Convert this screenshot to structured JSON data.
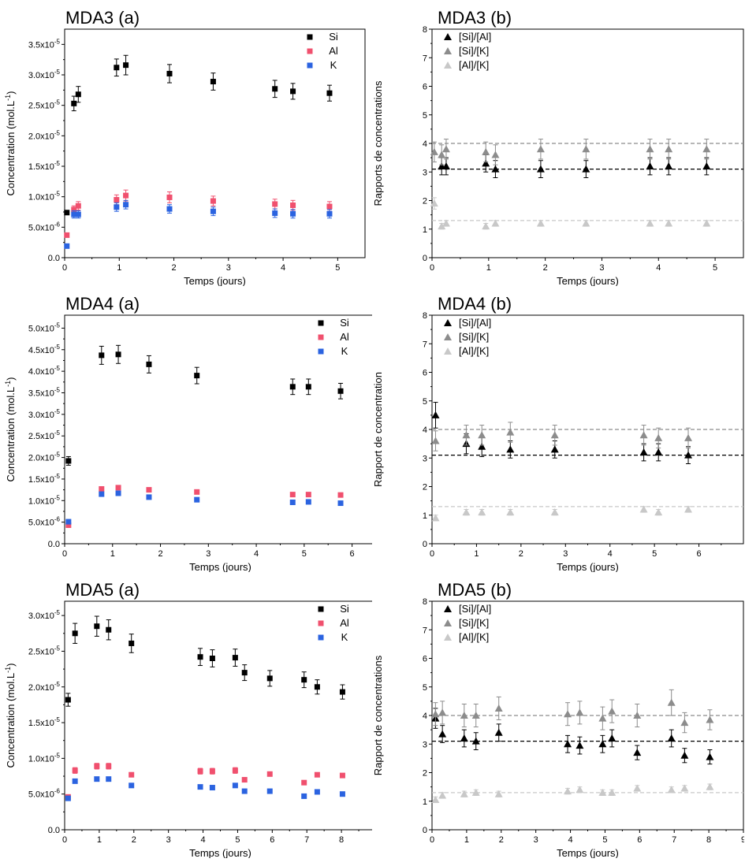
{
  "chart_data": [
    {
      "id": "mda3a",
      "type": "scatter",
      "title": "MDA3 (a)",
      "xlabel": "Temps (jours)",
      "ylabel": "Concentration (mol.L-1)",
      "xlim": [
        0,
        5.5
      ],
      "ylim": [
        0,
        3.75e-05
      ],
      "xticks": [
        0,
        1,
        2,
        3,
        4,
        5
      ],
      "yticks": [
        0,
        5e-06,
        1e-05,
        1.5e-05,
        2e-05,
        2.5e-05,
        3e-05,
        3.5e-05
      ],
      "yticklabels": [
        "0.0",
        "5.0x10-6",
        "1.0x10-5",
        "1.5x10-5",
        "2.0x10-5",
        "2.5x10-5",
        "3.0x10-5",
        "3.5x10-5"
      ],
      "grid": false,
      "legend": "top-right",
      "series": [
        {
          "name": "Si",
          "color": "#000000",
          "marker": "square",
          "x": [
            0.04,
            0.17,
            0.25,
            0.95,
            1.12,
            1.92,
            2.72,
            3.85,
            4.18,
            4.85
          ],
          "y": [
            7.4e-06,
            2.53e-05,
            2.68e-05,
            3.12e-05,
            3.16e-05,
            3.02e-05,
            2.89e-05,
            2.77e-05,
            2.73e-05,
            2.7e-05
          ],
          "err": [
            0,
            1.2e-06,
            1.3e-06,
            1.4e-06,
            1.6e-06,
            1.5e-06,
            1.4e-06,
            1.4e-06,
            1.3e-06,
            1.3e-06
          ]
        },
        {
          "name": "Al",
          "color": "#f0506e",
          "marker": "square",
          "x": [
            0.04,
            0.17,
            0.25,
            0.95,
            1.12,
            1.92,
            2.72,
            3.85,
            4.18,
            4.85
          ],
          "y": [
            3.7e-06,
            7.9e-06,
            8.5e-06,
            9.5e-06,
            1.02e-05,
            9.9e-06,
            9.3e-06,
            8.8e-06,
            8.6e-06,
            8.4e-06
          ],
          "err": [
            0,
            6e-07,
            7e-07,
            8e-07,
            9e-07,
            9e-07,
            8e-07,
            8e-07,
            8e-07,
            8e-07
          ]
        },
        {
          "name": "K",
          "color": "#2b63e0",
          "marker": "square",
          "x": [
            0.04,
            0.17,
            0.25,
            0.95,
            1.12,
            1.92,
            2.72,
            3.85,
            4.18,
            4.85
          ],
          "y": [
            1.9e-06,
            7.1e-06,
            7.1e-06,
            8.3e-06,
            8.7e-06,
            8e-06,
            7.6e-06,
            7.3e-06,
            7.2e-06,
            7.2e-06
          ],
          "err": [
            0,
            6e-07,
            6e-07,
            7e-07,
            7e-07,
            7e-07,
            7e-07,
            7e-07,
            7e-07,
            7e-07
          ]
        }
      ]
    },
    {
      "id": "mda3b",
      "type": "scatter",
      "title": "MDA3 (b)",
      "xlabel": "Temps (jours)",
      "ylabel": "Rapports de concentrations",
      "xlim": [
        0,
        5.5
      ],
      "ylim": [
        0,
        8
      ],
      "xticks": [
        0,
        1,
        2,
        3,
        4,
        5
      ],
      "yticks": [
        0,
        1,
        2,
        3,
        4,
        5,
        6,
        7,
        8
      ],
      "yticklabels": [
        "0",
        "1",
        "2",
        "3",
        "4",
        "5",
        "6",
        "7",
        "8"
      ],
      "grid": false,
      "legend": "top-left",
      "hlines": [
        {
          "y": 4.0,
          "color": "#8c8c8c"
        },
        {
          "y": 3.1,
          "color": "#000000"
        },
        {
          "y": 1.3,
          "color": "#c8c8c8"
        }
      ],
      "series": [
        {
          "name": "[Si]/[Al]",
          "color": "#000000",
          "marker": "triangle",
          "x": [
            0.17,
            0.25,
            0.95,
            1.12,
            1.92,
            2.72,
            3.85,
            4.18,
            4.85
          ],
          "y": [
            3.2,
            3.2,
            3.3,
            3.1,
            3.1,
            3.1,
            3.2,
            3.2,
            3.2
          ],
          "err": [
            0.3,
            0.3,
            0.3,
            0.3,
            0.3,
            0.3,
            0.3,
            0.3,
            0.3
          ]
        },
        {
          "name": "[Si]/[K]",
          "color": "#8c8c8c",
          "marker": "triangle",
          "x": [
            0.04,
            0.17,
            0.25,
            0.95,
            1.12,
            1.92,
            2.72,
            3.85,
            4.18,
            4.85
          ],
          "y": [
            3.7,
            3.6,
            3.8,
            3.7,
            3.6,
            3.8,
            3.8,
            3.8,
            3.8,
            3.8
          ],
          "err": [
            0.35,
            0.35,
            0.35,
            0.35,
            0.35,
            0.35,
            0.35,
            0.35,
            0.35,
            0.35
          ]
        },
        {
          "name": "[Al]/[K]",
          "color": "#c8c8c8",
          "marker": "triangle",
          "x": [
            0.04,
            0.17,
            0.25,
            0.95,
            1.12,
            1.92,
            2.72,
            3.85,
            4.18,
            4.85
          ],
          "y": [
            1.9,
            1.1,
            1.2,
            1.1,
            1.2,
            1.2,
            1.2,
            1.2,
            1.2,
            1.2
          ],
          "err": [
            0.2,
            0.1,
            0.1,
            0.1,
            0.1,
            0.1,
            0.1,
            0.1,
            0.1,
            0.1
          ]
        }
      ]
    },
    {
      "id": "mda4a",
      "type": "scatter",
      "title": "MDA4 (a)",
      "xlabel": "Temps (jours)",
      "ylabel": "Concentration (mol.L-1)",
      "xlim": [
        0,
        6.5
      ],
      "ylim": [
        0,
        5.3e-05
      ],
      "xticks": [
        0,
        1,
        2,
        3,
        4,
        5,
        6
      ],
      "yticks": [
        0,
        5e-06,
        1e-05,
        1.5e-05,
        2e-05,
        2.5e-05,
        3e-05,
        3.5e-05,
        4e-05,
        4.5e-05,
        5e-05
      ],
      "yticklabels": [
        "0.0",
        "5.0x10-6",
        "1.0x10-5",
        "1.5x10-5",
        "2.0x10-5",
        "2.5x10-5",
        "3.0x10-5",
        "3.5x10-5",
        "4.0x10-5",
        "4.5x10-5",
        "5.0x10-5"
      ],
      "grid": false,
      "legend": "top-right",
      "series": [
        {
          "name": "Si",
          "color": "#000000",
          "marker": "square",
          "x": [
            0.08,
            0.77,
            1.12,
            1.76,
            2.76,
            4.76,
            5.09,
            5.76
          ],
          "y": [
            1.92e-05,
            4.37e-05,
            4.39e-05,
            4.16e-05,
            3.9e-05,
            3.64e-05,
            3.64e-05,
            3.54e-05
          ],
          "err": [
            1e-06,
            2.1e-06,
            2.1e-06,
            2e-06,
            1.9e-06,
            1.8e-06,
            1.8e-06,
            1.8e-06
          ]
        },
        {
          "name": "Al",
          "color": "#f0506e",
          "marker": "square",
          "x": [
            0.08,
            0.77,
            1.12,
            1.76,
            2.76,
            4.76,
            5.09,
            5.76
          ],
          "y": [
            4.3e-06,
            1.27e-05,
            1.3e-05,
            1.25e-05,
            1.2e-05,
            1.14e-05,
            1.14e-05,
            1.13e-05
          ],
          "err": [
            0,
            0,
            0,
            0,
            0,
            0,
            0,
            0
          ]
        },
        {
          "name": "K",
          "color": "#2b63e0",
          "marker": "square",
          "x": [
            0.08,
            0.77,
            1.12,
            1.76,
            2.76,
            4.76,
            5.09,
            5.76
          ],
          "y": [
            5.1e-06,
            1.15e-05,
            1.17e-05,
            1.08e-05,
            1.02e-05,
            9.6e-06,
            9.7e-06,
            9.4e-06
          ],
          "err": [
            0,
            0,
            0,
            0,
            0,
            0,
            0,
            0
          ]
        }
      ]
    },
    {
      "id": "mda4b",
      "type": "scatter",
      "title": "MDA4 (b)",
      "xlabel": "Temps (jours)",
      "ylabel": "Rapport de concentration",
      "xlim": [
        0,
        7
      ],
      "ylim": [
        0,
        8
      ],
      "xticks": [
        0,
        1,
        2,
        3,
        4,
        5,
        6
      ],
      "yticks": [
        0,
        1,
        2,
        3,
        4,
        5,
        6,
        7,
        8
      ],
      "yticklabels": [
        "0",
        "1",
        "2",
        "3",
        "4",
        "5",
        "6",
        "7",
        "8"
      ],
      "grid": false,
      "legend": "top-left",
      "hlines": [
        {
          "y": 4.0,
          "color": "#8c8c8c"
        },
        {
          "y": 3.1,
          "color": "#000000"
        },
        {
          "y": 1.3,
          "color": "#c8c8c8"
        }
      ],
      "series": [
        {
          "name": "[Si]/[Al]",
          "color": "#000000",
          "marker": "triangle",
          "x": [
            0.08,
            0.77,
            1.12,
            1.76,
            2.76,
            4.76,
            5.09,
            5.76
          ],
          "y": [
            4.5,
            3.5,
            3.4,
            3.3,
            3.3,
            3.2,
            3.2,
            3.1
          ],
          "err": [
            0.45,
            0.35,
            0.35,
            0.3,
            0.3,
            0.3,
            0.3,
            0.3
          ]
        },
        {
          "name": "[Si]/[K]",
          "color": "#8c8c8c",
          "marker": "triangle",
          "x": [
            0.08,
            0.77,
            1.12,
            1.76,
            2.76,
            4.76,
            5.09,
            5.76
          ],
          "y": [
            3.6,
            3.8,
            3.8,
            3.9,
            3.8,
            3.8,
            3.7,
            3.7
          ],
          "err": [
            0.35,
            0.35,
            0.35,
            0.35,
            0.35,
            0.35,
            0.35,
            0.35
          ]
        },
        {
          "name": "[Al]/[K]",
          "color": "#c8c8c8",
          "marker": "triangle",
          "x": [
            0.08,
            0.77,
            1.12,
            1.76,
            2.76,
            4.76,
            5.09,
            5.76
          ],
          "y": [
            0.9,
            1.1,
            1.1,
            1.1,
            1.1,
            1.2,
            1.1,
            1.2
          ],
          "err": [
            0.1,
            0.1,
            0.1,
            0.1,
            0.1,
            0.1,
            0.1,
            0.1
          ]
        }
      ]
    },
    {
      "id": "mda5a",
      "type": "scatter",
      "title": "MDA5 (a)",
      "xlabel": "Temps (jours)",
      "ylabel": "Concentration (mol.L-1)",
      "xlim": [
        0,
        9
      ],
      "ylim": [
        0,
        3.2e-05
      ],
      "xticks": [
        0,
        1,
        2,
        3,
        4,
        5,
        6,
        7,
        8,
        9
      ],
      "yticks": [
        0,
        5e-06,
        1e-05,
        1.5e-05,
        2e-05,
        2.5e-05,
        3e-05
      ],
      "yticklabels": [
        "0.0",
        "5.0x10-6",
        "1.0x10-5",
        "1.5x10-5",
        "2.0x10-5",
        "2.5x10-5",
        "3.0x10-5"
      ],
      "grid": false,
      "legend": "top-right",
      "series": [
        {
          "name": "Si",
          "color": "#000000",
          "marker": "square",
          "x": [
            0.1,
            0.3,
            0.93,
            1.27,
            1.93,
            3.92,
            4.27,
            4.93,
            5.2,
            5.93,
            6.92,
            7.3,
            8.03
          ],
          "y": [
            1.82e-05,
            2.75e-05,
            2.85e-05,
            2.8e-05,
            2.61e-05,
            2.42e-05,
            2.4e-05,
            2.41e-05,
            2.2e-05,
            2.12e-05,
            2.1e-05,
            2e-05,
            1.93e-05
          ],
          "err": [
            9e-07,
            1.4e-06,
            1.4e-06,
            1.4e-06,
            1.3e-06,
            1.2e-06,
            1.2e-06,
            1.2e-06,
            1.1e-06,
            1.1e-06,
            1.1e-06,
            1e-06,
            1e-06
          ]
        },
        {
          "name": "Al",
          "color": "#f0506e",
          "marker": "square",
          "x": [
            0.1,
            0.3,
            0.93,
            1.27,
            1.93,
            3.92,
            4.27,
            4.93,
            5.2,
            5.93,
            6.92,
            7.3,
            8.03
          ],
          "y": [
            4.6e-06,
            8.3e-06,
            8.9e-06,
            8.9e-06,
            7.7e-06,
            8.2e-06,
            8.2e-06,
            8.3e-06,
            7e-06,
            7.8e-06,
            6.6e-06,
            7.7e-06,
            7.6e-06
          ],
          "err": [
            0,
            4e-07,
            4e-07,
            4e-07,
            0,
            4e-07,
            4e-07,
            4e-07,
            0,
            0,
            0,
            0,
            0
          ]
        },
        {
          "name": "K",
          "color": "#2b63e0",
          "marker": "square",
          "x": [
            0.1,
            0.3,
            0.93,
            1.27,
            1.93,
            3.92,
            4.27,
            4.93,
            5.2,
            5.93,
            6.92,
            7.3,
            8.03
          ],
          "y": [
            4.4e-06,
            6.8e-06,
            7.1e-06,
            7.1e-06,
            6.2e-06,
            6e-06,
            5.9e-06,
            6.2e-06,
            5.4e-06,
            5.4e-06,
            4.7e-06,
            5.3e-06,
            5e-06
          ],
          "err": [
            0,
            0,
            0,
            0,
            0,
            0,
            0,
            0,
            0,
            0,
            0,
            0,
            0
          ]
        }
      ]
    },
    {
      "id": "mda5b",
      "type": "scatter",
      "title": "MDA5 (b)",
      "xlabel": "Temps (jours)",
      "ylabel": "Rapport de concentrations",
      "xlim": [
        0,
        9
      ],
      "ylim": [
        0,
        8
      ],
      "xticks": [
        0,
        1,
        2,
        3,
        4,
        5,
        6,
        7,
        8,
        9
      ],
      "yticks": [
        0,
        1,
        2,
        3,
        4,
        5,
        6,
        7,
        8
      ],
      "yticklabels": [
        "0",
        "1",
        "2",
        "3",
        "4",
        "5",
        "6",
        "7",
        "8"
      ],
      "grid": false,
      "legend": "top-left",
      "hlines": [
        {
          "y": 4.0,
          "color": "#8c8c8c"
        },
        {
          "y": 3.1,
          "color": "#000000"
        },
        {
          "y": 1.3,
          "color": "#c8c8c8"
        }
      ],
      "series": [
        {
          "name": "[Si]/[Al]",
          "color": "#000000",
          "marker": "triangle",
          "x": [
            0.1,
            0.3,
            0.93,
            1.27,
            1.93,
            3.92,
            4.27,
            4.93,
            5.2,
            5.93,
            6.92,
            7.3,
            8.03
          ],
          "y": [
            3.9,
            3.35,
            3.2,
            3.1,
            3.4,
            3.0,
            2.95,
            3.0,
            3.2,
            2.7,
            3.2,
            2.6,
            2.55
          ],
          "err": [
            0.35,
            0.3,
            0.3,
            0.3,
            0.3,
            0.3,
            0.3,
            0.3,
            0.3,
            0.25,
            0.3,
            0.25,
            0.25
          ]
        },
        {
          "name": "[Si]/[K]",
          "color": "#8c8c8c",
          "marker": "triangle",
          "x": [
            0.1,
            0.3,
            0.93,
            1.27,
            1.93,
            3.92,
            4.27,
            4.93,
            5.2,
            5.93,
            6.92,
            7.3,
            8.03
          ],
          "y": [
            4.05,
            4.1,
            4.0,
            4.0,
            4.25,
            4.05,
            4.1,
            3.9,
            4.15,
            4.0,
            4.45,
            3.75,
            3.85
          ],
          "err": [
            0.4,
            0.4,
            0.4,
            0.4,
            0.4,
            0.4,
            0.4,
            0.4,
            0.4,
            0.4,
            0.45,
            0.35,
            0.35
          ]
        },
        {
          "name": "[Al]/[K]",
          "color": "#c8c8c8",
          "marker": "triangle",
          "x": [
            0.1,
            0.3,
            0.93,
            1.27,
            1.93,
            3.92,
            4.27,
            4.93,
            5.2,
            5.93,
            6.92,
            7.3,
            8.03
          ],
          "y": [
            1.05,
            1.2,
            1.25,
            1.3,
            1.25,
            1.35,
            1.4,
            1.3,
            1.3,
            1.45,
            1.4,
            1.45,
            1.5
          ],
          "err": [
            0.1,
            0.1,
            0.1,
            0.1,
            0.1,
            0.1,
            0.1,
            0.1,
            0.1,
            0.1,
            0.1,
            0.1,
            0.1
          ]
        }
      ]
    }
  ]
}
